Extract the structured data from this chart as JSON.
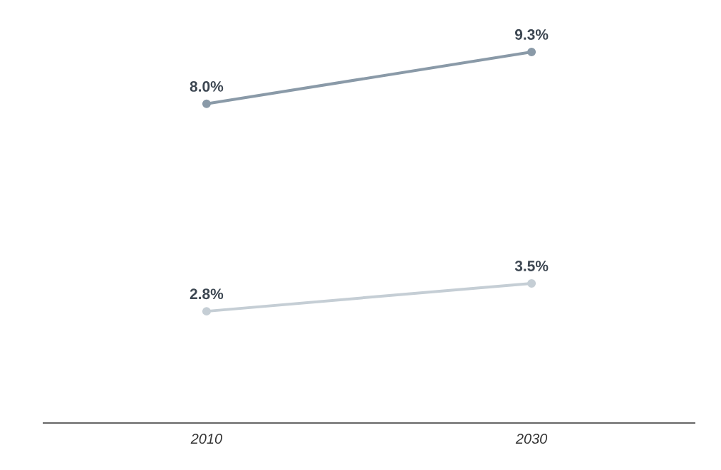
{
  "chart_data": {
    "type": "line",
    "categories": [
      "2010",
      "2030"
    ],
    "marker": "circle",
    "line_style": "solid",
    "series": [
      {
        "color": "#8a9aa8",
        "values": [
          8.0,
          9.3
        ],
        "value_labels": [
          "8.0%",
          "9.3%"
        ]
      },
      {
        "color": "#c5ced5",
        "values": [
          2.8,
          3.5
        ],
        "value_labels": [
          "2.8%",
          "3.5%"
        ]
      }
    ]
  }
}
